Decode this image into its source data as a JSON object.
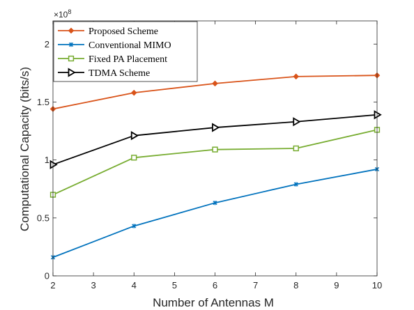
{
  "chart_data": {
    "type": "line",
    "xlabel": "Number of Antennas M",
    "ylabel": "Computational Capacity (bits/s)",
    "y_exponent_label": "×10",
    "y_exponent_power": "8",
    "xlim": [
      2,
      10
    ],
    "ylim": [
      0,
      2.2
    ],
    "x_ticks": [
      2,
      3,
      4,
      5,
      6,
      7,
      8,
      9,
      10
    ],
    "x_tick_labels": [
      "2",
      "3",
      "4",
      "5",
      "6",
      "7",
      "8",
      "9",
      "10"
    ],
    "y_ticks": [
      0,
      0.5,
      1,
      1.5,
      2
    ],
    "y_tick_labels": [
      "0",
      "0.5",
      "1",
      "1.5",
      "2"
    ],
    "grid": false,
    "legend_position": "top-left",
    "x": [
      2,
      4,
      6,
      8,
      10
    ],
    "series": [
      {
        "name": "Proposed Scheme",
        "values": [
          1.44,
          1.58,
          1.66,
          1.72,
          1.73
        ],
        "color": "#D95319",
        "marker": "diamond"
      },
      {
        "name": "Conventional MIMO",
        "values": [
          0.16,
          0.43,
          0.63,
          0.79,
          0.92
        ],
        "color": "#0072BD",
        "marker": "star"
      },
      {
        "name": "Fixed PA Placement",
        "values": [
          0.7,
          1.02,
          1.09,
          1.1,
          1.26
        ],
        "color": "#77AC30",
        "marker": "square"
      },
      {
        "name": "TDMA Scheme",
        "values": [
          0.96,
          1.21,
          1.28,
          1.33,
          1.39
        ],
        "color": "#000000",
        "marker": "triangle-right"
      }
    ]
  }
}
